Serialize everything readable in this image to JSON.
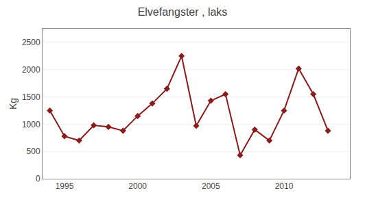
{
  "chart_data": {
    "type": "line",
    "title": "Elvefangster , laks",
    "ylabel": "Kg",
    "x": [
      1994,
      1995,
      1996,
      1997,
      1998,
      1999,
      2000,
      2001,
      2002,
      2003,
      2004,
      2005,
      2006,
      2007,
      2008,
      2009,
      2010,
      2011,
      2012,
      2013
    ],
    "values": [
      1250,
      780,
      700,
      980,
      950,
      880,
      1150,
      1380,
      1650,
      2250,
      970,
      1430,
      1550,
      430,
      900,
      700,
      1250,
      2020,
      1550,
      880
    ],
    "color": "#8B1A1A",
    "marker": "diamond",
    "xlim": [
      1993.5,
      2014.5
    ],
    "xticks": [
      1995,
      2000,
      2005,
      2010
    ],
    "ylim": [
      0,
      2750
    ],
    "yticks": [
      0,
      500,
      1000,
      1500,
      2000,
      2500
    ],
    "grid": "y"
  }
}
